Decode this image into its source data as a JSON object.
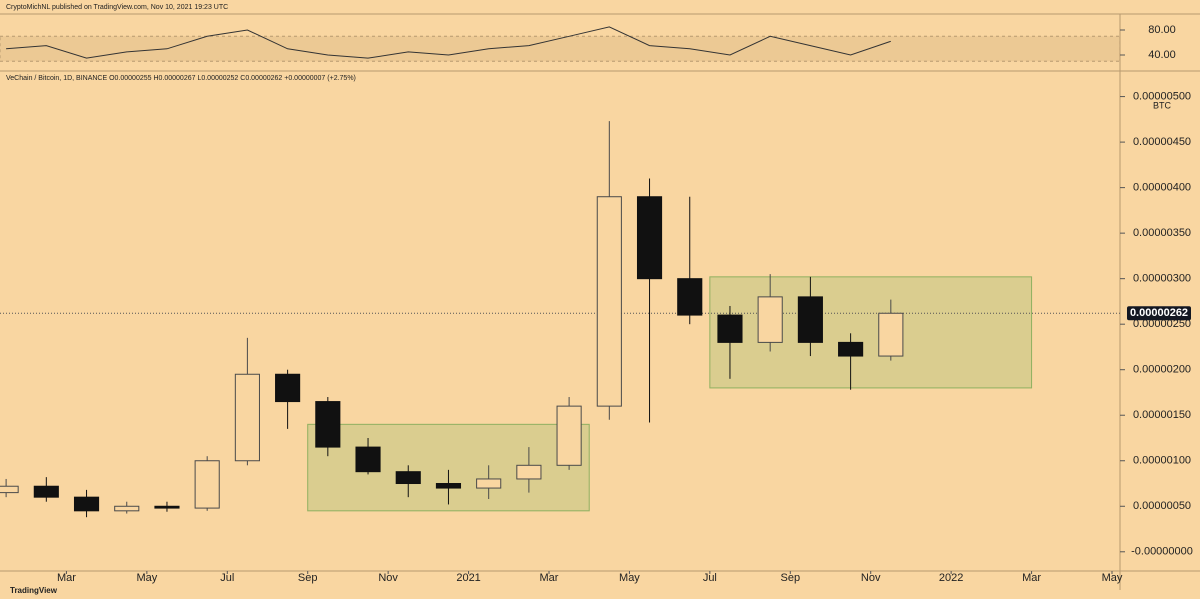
{
  "header": {
    "publisher": "CryptoMichNL published on TradingView.com, Nov 10, 2021 19:23 UTC",
    "footer": "TradingView"
  },
  "chart_data": [
    {
      "type": "line",
      "name": "RSI",
      "x": [
        "2020-01",
        "2020-02",
        "2020-03",
        "2020-04",
        "2020-05",
        "2020-06",
        "2020-07",
        "2020-08",
        "2020-09",
        "2020-10",
        "2020-11",
        "2020-12",
        "2021-01",
        "2021-02",
        "2021-03",
        "2021-04",
        "2021-05",
        "2021-06",
        "2021-07",
        "2021-08",
        "2021-09",
        "2021-10",
        "2021-11"
      ],
      "series": [
        {
          "color": "#333333",
          "values": [
            50,
            55,
            35,
            45,
            50,
            70,
            80,
            50,
            40,
            35,
            45,
            40,
            50,
            55,
            70,
            85,
            55,
            50,
            40,
            70,
            55,
            40,
            62
          ]
        }
      ],
      "band": [
        30,
        70
      ],
      "ylim": [
        16,
        104
      ],
      "yticks": [
        {
          "value": 80,
          "label": "80.00"
        },
        {
          "value": 40,
          "label": "40.00"
        }
      ]
    },
    {
      "type": "candlestick",
      "legend": "VeChain / Bitcoin, 1D, BINANCE  O0.00000255  H0.00000267  L0.00000252  C0.00000262  +0.00000007 (+2.75%)",
      "y_unit": "BTC",
      "x": [
        "2020-01",
        "2020-02",
        "2020-03",
        "2020-04",
        "2020-05",
        "2020-06",
        "2020-07",
        "2020-08",
        "2020-09",
        "2020-10",
        "2020-11",
        "2020-12",
        "2021-01",
        "2021-02",
        "2021-03",
        "2021-04",
        "2021-05",
        "2021-06",
        "2021-07",
        "2021-08",
        "2021-09",
        "2021-10",
        "2021-11"
      ],
      "open": [
        6.5e-07,
        7.2e-07,
        6e-07,
        4.5e-07,
        5e-07,
        4.8e-07,
        1e-06,
        1.95e-06,
        1.65e-06,
        1.15e-06,
        8.8e-07,
        7.5e-07,
        7e-07,
        8e-07,
        9.5e-07,
        1.6e-06,
        3.9e-06,
        3e-06,
        2.6e-06,
        2.3e-06,
        2.8e-06,
        2.3e-06,
        2.15e-06
      ],
      "high": [
        8e-07,
        8.2e-07,
        6.8e-07,
        5.5e-07,
        5.5e-07,
        1.05e-06,
        2.35e-06,
        2e-06,
        1.7e-06,
        1.25e-06,
        9.5e-07,
        9e-07,
        9.5e-07,
        1.15e-06,
        1.7e-06,
        4.73e-06,
        4.1e-06,
        3.9e-06,
        2.7e-06,
        3.05e-06,
        3.02e-06,
        2.4e-06,
        2.77e-06
      ],
      "low": [
        6e-07,
        5.5e-07,
        3.8e-07,
        4.2e-07,
        4.4e-07,
        4.5e-07,
        9.5e-07,
        1.35e-06,
        1.05e-06,
        8.5e-07,
        6e-07,
        5.2e-07,
        5.8e-07,
        6.5e-07,
        9e-07,
        1.45e-06,
        1.42e-06,
        2.5e-06,
        1.9e-06,
        2.2e-06,
        2.15e-06,
        1.78e-06,
        2.1e-06
      ],
      "close": [
        7.2e-07,
        6e-07,
        4.5e-07,
        5e-07,
        4.8e-07,
        1e-06,
        1.95e-06,
        1.65e-06,
        1.15e-06,
        8.8e-07,
        7.5e-07,
        7e-07,
        8e-07,
        9.5e-07,
        1.6e-06,
        3.9e-06,
        3e-06,
        2.6e-06,
        2.3e-06,
        2.8e-06,
        2.3e-06,
        2.15e-06,
        2.62e-06
      ],
      "up_color": "#4a4a4a",
      "down_color": "#111111",
      "boxes": [
        {
          "x": [
            "2020-09",
            "2021-04"
          ],
          "y": [
            4.5e-07,
            1.4e-06
          ]
        },
        {
          "x": [
            "2021-07",
            "2022-03"
          ],
          "y": [
            1.8e-06,
            3.02e-06
          ]
        }
      ],
      "last_price": 2.62e-06,
      "last_price_label": "0.00000262",
      "xlim": [
        "2020-01",
        "2022-05"
      ],
      "xticks": [
        {
          "value": "2020-03",
          "label": "Mar"
        },
        {
          "value": "2020-05",
          "label": "May"
        },
        {
          "value": "2020-07",
          "label": "Jul"
        },
        {
          "value": "2020-09",
          "label": "Sep"
        },
        {
          "value": "2020-11",
          "label": "Nov"
        },
        {
          "value": "2021-01",
          "label": "2021"
        },
        {
          "value": "2021-03",
          "label": "Mar"
        },
        {
          "value": "2021-05",
          "label": "May"
        },
        {
          "value": "2021-07",
          "label": "Jul"
        },
        {
          "value": "2021-09",
          "label": "Sep"
        },
        {
          "value": "2021-11",
          "label": "Nov"
        },
        {
          "value": "2022-01",
          "label": "2022"
        },
        {
          "value": "2022-03",
          "label": "Mar"
        },
        {
          "value": "2022-05",
          "label": "May"
        }
      ],
      "ylim": [
        -2e-07,
        5.27e-06
      ],
      "yticks": [
        {
          "value": 5e-06,
          "label": "0.00000500"
        },
        {
          "value": 4.5e-06,
          "label": "0.00000450"
        },
        {
          "value": 4e-06,
          "label": "0.00000400"
        },
        {
          "value": 3.5e-06,
          "label": "0.00000350"
        },
        {
          "value": 3e-06,
          "label": "0.00000300"
        },
        {
          "value": 2.5e-06,
          "label": "0.00000250"
        },
        {
          "value": 2e-06,
          "label": "0.00000200"
        },
        {
          "value": 1.5e-06,
          "label": "0.00000150"
        },
        {
          "value": 1e-06,
          "label": "0.00000100"
        },
        {
          "value": 5e-07,
          "label": "0.00000050"
        },
        {
          "value": 0,
          "label": "-0.00000000"
        }
      ]
    }
  ]
}
